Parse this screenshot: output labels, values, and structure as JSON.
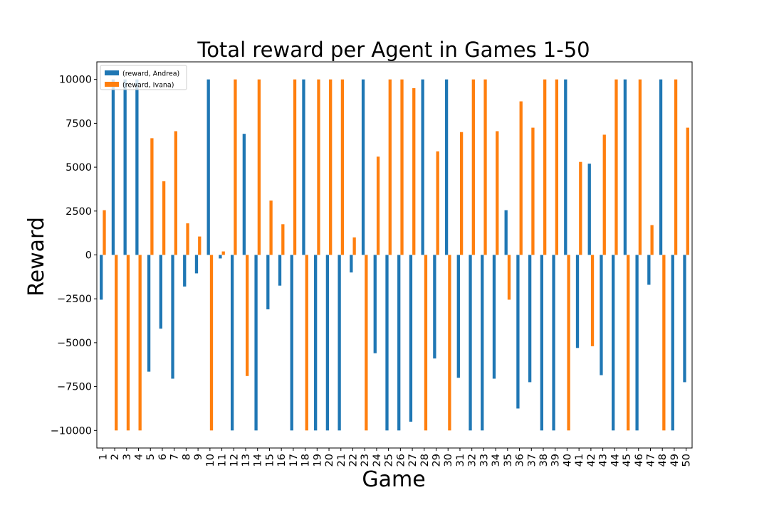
{
  "chart_data": {
    "type": "bar",
    "title": "Total reward per Agent in Games 1-50",
    "xlabel": "Game",
    "ylabel": "Reward",
    "ylim": [
      -11000,
      11000
    ],
    "yticks": [
      10000,
      7500,
      5000,
      2500,
      0,
      -2500,
      -5000,
      -7500,
      -10000
    ],
    "ytick_labels": [
      "10000",
      "7500",
      "5000",
      "2500",
      "0",
      "−2500",
      "−5000",
      "−7500",
      "−10000"
    ],
    "grid": false,
    "legend_position": "top-left",
    "categories": [
      "1",
      "2",
      "3",
      "4",
      "5",
      "6",
      "7",
      "8",
      "9",
      "10",
      "11",
      "12",
      "13",
      "14",
      "15",
      "16",
      "17",
      "18",
      "19",
      "20",
      "21",
      "22",
      "23",
      "24",
      "25",
      "26",
      "27",
      "28",
      "29",
      "30",
      "31",
      "32",
      "33",
      "34",
      "35",
      "36",
      "37",
      "38",
      "39",
      "40",
      "41",
      "42",
      "43",
      "44",
      "45",
      "46",
      "47",
      "48",
      "49",
      "50"
    ],
    "series": [
      {
        "name": "(reward, Andrea)",
        "color": "#1f77b4",
        "values": [
          -2550,
          10000,
          10000,
          10000,
          -6650,
          -4200,
          -7050,
          -1800,
          -1050,
          10000,
          -200,
          -10000,
          6900,
          -10000,
          -3100,
          -1750,
          -10000,
          10000,
          -10000,
          -10000,
          -10000,
          -1000,
          10000,
          -5600,
          -10000,
          -10000,
          -9500,
          10000,
          -5900,
          10000,
          -7000,
          -10000,
          -10000,
          -7050,
          2550,
          -8750,
          -7250,
          -10000,
          -10000,
          10000,
          -5300,
          5200,
          -6850,
          -10000,
          10000,
          -10000,
          -1700,
          10000,
          -10000,
          -7250
        ]
      },
      {
        "name": "(reward, Ivana)",
        "color": "#ff7f0e",
        "values": [
          2550,
          -10000,
          -10000,
          -10000,
          6650,
          4200,
          7050,
          1800,
          1050,
          -10000,
          200,
          10000,
          -6900,
          10000,
          3100,
          1750,
          10000,
          -10000,
          10000,
          10000,
          10000,
          1000,
          -10000,
          5600,
          10000,
          10000,
          9500,
          -10000,
          5900,
          -10000,
          7000,
          10000,
          10000,
          7050,
          -2550,
          8750,
          7250,
          10000,
          10000,
          -10000,
          5300,
          -5200,
          6850,
          10000,
          -10000,
          10000,
          1700,
          -10000,
          10000,
          7250
        ]
      }
    ]
  }
}
